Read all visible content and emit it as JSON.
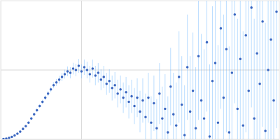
{
  "chart_data": {
    "type": "scatter",
    "x": [
      0.01,
      0.02,
      0.03,
      0.04,
      0.05,
      0.06,
      0.07,
      0.08,
      0.09,
      0.1,
      0.11,
      0.12,
      0.13,
      0.14,
      0.15,
      0.16,
      0.17,
      0.18,
      0.19,
      0.2,
      0.21,
      0.22,
      0.23,
      0.24,
      0.25,
      0.26,
      0.27,
      0.28,
      0.29,
      0.3,
      0.31,
      0.32,
      0.33,
      0.34,
      0.35,
      0.36,
      0.37,
      0.38,
      0.39,
      0.4,
      0.41,
      0.42,
      0.43,
      0.44,
      0.45,
      0.46,
      0.47,
      0.48,
      0.49,
      0.5,
      0.51,
      0.52,
      0.53,
      0.54,
      0.55,
      0.56,
      0.57,
      0.58,
      0.59,
      0.6,
      0.61,
      0.62,
      0.63,
      0.64,
      0.65,
      0.66,
      0.67,
      0.68,
      0.69,
      0.7,
      0.71,
      0.72,
      0.73,
      0.74,
      0.75,
      0.76,
      0.77,
      0.78,
      0.79,
      0.8,
      0.81,
      0.82,
      0.83,
      0.84,
      0.85,
      0.86,
      0.87,
      0.88,
      0.89,
      0.9,
      0.91,
      0.92,
      0.93,
      0.94,
      0.95,
      0.96,
      0.97,
      0.98,
      0.99
    ],
    "values": [
      0.002,
      0.005,
      0.01,
      0.018,
      0.028,
      0.04,
      0.055,
      0.075,
      0.095,
      0.12,
      0.15,
      0.18,
      0.21,
      0.24,
      0.27,
      0.3,
      0.33,
      0.36,
      0.39,
      0.41,
      0.43,
      0.45,
      0.47,
      0.49,
      0.48,
      0.51,
      0.5,
      0.53,
      0.49,
      0.52,
      0.5,
      0.47,
      0.51,
      0.46,
      0.48,
      0.43,
      0.45,
      0.4,
      0.42,
      0.37,
      0.39,
      0.33,
      0.36,
      0.3,
      0.34,
      0.27,
      0.31,
      0.24,
      0.3,
      0.2,
      0.28,
      0.16,
      0.3,
      0.12,
      0.26,
      0.08,
      0.33,
      0.15,
      0.22,
      0.05,
      0.38,
      0.18,
      0.1,
      0.45,
      0.25,
      0.03,
      0.52,
      0.2,
      0.35,
      0.08,
      0.6,
      0.28,
      0.15,
      0.7,
      0.02,
      0.42,
      0.55,
      0.12,
      0.8,
      0.3,
      0.65,
      0.05,
      0.48,
      0.9,
      0.22,
      0.58,
      0.1,
      0.75,
      0.35,
      0.95,
      0.15,
      0.62,
      0.4,
      0.85,
      0.06,
      0.5,
      0.72,
      0.28,
      0.92
    ],
    "errors": [
      0.002,
      0.002,
      0.003,
      0.003,
      0.004,
      0.004,
      0.005,
      0.006,
      0.007,
      0.008,
      0.01,
      0.01,
      0.012,
      0.013,
      0.015,
      0.016,
      0.018,
      0.02,
      0.022,
      0.025,
      0.028,
      0.03,
      0.032,
      0.035,
      0.04,
      0.042,
      0.045,
      0.05,
      0.05,
      0.055,
      0.06,
      0.06,
      0.065,
      0.07,
      0.07,
      0.075,
      0.08,
      0.08,
      0.085,
      0.09,
      0.095,
      0.1,
      0.1,
      0.11,
      0.11,
      0.12,
      0.12,
      0.13,
      0.14,
      0.15,
      0.16,
      0.17,
      0.18,
      0.19,
      0.2,
      0.21,
      0.22,
      0.23,
      0.25,
      0.26,
      0.28,
      0.3,
      0.31,
      0.33,
      0.35,
      0.36,
      0.38,
      0.4,
      0.42,
      0.44,
      0.46,
      0.48,
      0.5,
      0.5,
      0.52,
      0.54,
      0.55,
      0.56,
      0.58,
      0.6,
      0.6,
      0.62,
      0.62,
      0.64,
      0.65,
      0.66,
      0.68,
      0.7,
      0.7,
      0.72,
      0.72,
      0.74,
      0.75,
      0.76,
      0.78,
      0.8,
      0.8,
      0.82,
      0.84
    ],
    "color": "#3a66c0",
    "marker": "circle",
    "xlim": [
      0,
      1
    ],
    "ylim": [
      0,
      1
    ],
    "xticks": [
      0.29
    ],
    "yticks": [
      0.5
    ],
    "grid": true,
    "tick_labels": false
  }
}
